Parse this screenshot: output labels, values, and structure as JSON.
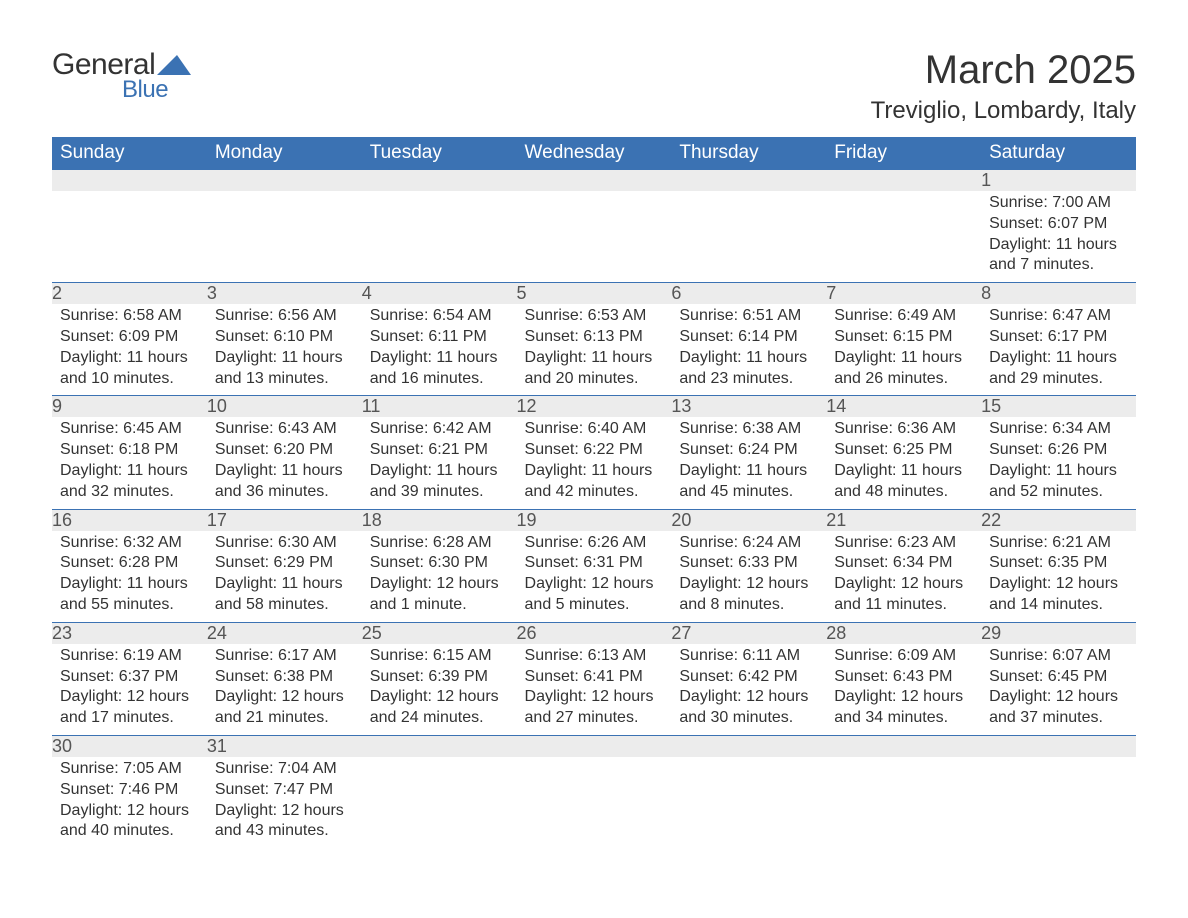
{
  "logo": {
    "text_general": "General",
    "text_blue": "Blue",
    "triangle_color": "#3b72b3"
  },
  "header": {
    "month_title": "March 2025",
    "location": "Treviglio, Lombardy, Italy"
  },
  "colors": {
    "header_bg": "#3b72b3",
    "header_text": "#ffffff",
    "daynum_bg": "#ececec",
    "body_text": "#333333",
    "row_border": "#3b72b3"
  },
  "typography": {
    "month_title_fontsize": 40,
    "location_fontsize": 24,
    "weekday_fontsize": 19,
    "daynum_fontsize": 18,
    "body_fontsize": 16
  },
  "weekdays": [
    "Sunday",
    "Monday",
    "Tuesday",
    "Wednesday",
    "Thursday",
    "Friday",
    "Saturday"
  ],
  "labels": {
    "sunrise": "Sunrise:",
    "sunset": "Sunset:",
    "daylight": "Daylight:"
  },
  "weeks": [
    [
      null,
      null,
      null,
      null,
      null,
      null,
      {
        "n": "1",
        "sunrise": "7:00 AM",
        "sunset": "6:07 PM",
        "daylight": "11 hours and 7 minutes."
      }
    ],
    [
      {
        "n": "2",
        "sunrise": "6:58 AM",
        "sunset": "6:09 PM",
        "daylight": "11 hours and 10 minutes."
      },
      {
        "n": "3",
        "sunrise": "6:56 AM",
        "sunset": "6:10 PM",
        "daylight": "11 hours and 13 minutes."
      },
      {
        "n": "4",
        "sunrise": "6:54 AM",
        "sunset": "6:11 PM",
        "daylight": "11 hours and 16 minutes."
      },
      {
        "n": "5",
        "sunrise": "6:53 AM",
        "sunset": "6:13 PM",
        "daylight": "11 hours and 20 minutes."
      },
      {
        "n": "6",
        "sunrise": "6:51 AM",
        "sunset": "6:14 PM",
        "daylight": "11 hours and 23 minutes."
      },
      {
        "n": "7",
        "sunrise": "6:49 AM",
        "sunset": "6:15 PM",
        "daylight": "11 hours and 26 minutes."
      },
      {
        "n": "8",
        "sunrise": "6:47 AM",
        "sunset": "6:17 PM",
        "daylight": "11 hours and 29 minutes."
      }
    ],
    [
      {
        "n": "9",
        "sunrise": "6:45 AM",
        "sunset": "6:18 PM",
        "daylight": "11 hours and 32 minutes."
      },
      {
        "n": "10",
        "sunrise": "6:43 AM",
        "sunset": "6:20 PM",
        "daylight": "11 hours and 36 minutes."
      },
      {
        "n": "11",
        "sunrise": "6:42 AM",
        "sunset": "6:21 PM",
        "daylight": "11 hours and 39 minutes."
      },
      {
        "n": "12",
        "sunrise": "6:40 AM",
        "sunset": "6:22 PM",
        "daylight": "11 hours and 42 minutes."
      },
      {
        "n": "13",
        "sunrise": "6:38 AM",
        "sunset": "6:24 PM",
        "daylight": "11 hours and 45 minutes."
      },
      {
        "n": "14",
        "sunrise": "6:36 AM",
        "sunset": "6:25 PM",
        "daylight": "11 hours and 48 minutes."
      },
      {
        "n": "15",
        "sunrise": "6:34 AM",
        "sunset": "6:26 PM",
        "daylight": "11 hours and 52 minutes."
      }
    ],
    [
      {
        "n": "16",
        "sunrise": "6:32 AM",
        "sunset": "6:28 PM",
        "daylight": "11 hours and 55 minutes."
      },
      {
        "n": "17",
        "sunrise": "6:30 AM",
        "sunset": "6:29 PM",
        "daylight": "11 hours and 58 minutes."
      },
      {
        "n": "18",
        "sunrise": "6:28 AM",
        "sunset": "6:30 PM",
        "daylight": "12 hours and 1 minute."
      },
      {
        "n": "19",
        "sunrise": "6:26 AM",
        "sunset": "6:31 PM",
        "daylight": "12 hours and 5 minutes."
      },
      {
        "n": "20",
        "sunrise": "6:24 AM",
        "sunset": "6:33 PM",
        "daylight": "12 hours and 8 minutes."
      },
      {
        "n": "21",
        "sunrise": "6:23 AM",
        "sunset": "6:34 PM",
        "daylight": "12 hours and 11 minutes."
      },
      {
        "n": "22",
        "sunrise": "6:21 AM",
        "sunset": "6:35 PM",
        "daylight": "12 hours and 14 minutes."
      }
    ],
    [
      {
        "n": "23",
        "sunrise": "6:19 AM",
        "sunset": "6:37 PM",
        "daylight": "12 hours and 17 minutes."
      },
      {
        "n": "24",
        "sunrise": "6:17 AM",
        "sunset": "6:38 PM",
        "daylight": "12 hours and 21 minutes."
      },
      {
        "n": "25",
        "sunrise": "6:15 AM",
        "sunset": "6:39 PM",
        "daylight": "12 hours and 24 minutes."
      },
      {
        "n": "26",
        "sunrise": "6:13 AM",
        "sunset": "6:41 PM",
        "daylight": "12 hours and 27 minutes."
      },
      {
        "n": "27",
        "sunrise": "6:11 AM",
        "sunset": "6:42 PM",
        "daylight": "12 hours and 30 minutes."
      },
      {
        "n": "28",
        "sunrise": "6:09 AM",
        "sunset": "6:43 PM",
        "daylight": "12 hours and 34 minutes."
      },
      {
        "n": "29",
        "sunrise": "6:07 AM",
        "sunset": "6:45 PM",
        "daylight": "12 hours and 37 minutes."
      }
    ],
    [
      {
        "n": "30",
        "sunrise": "7:05 AM",
        "sunset": "7:46 PM",
        "daylight": "12 hours and 40 minutes."
      },
      {
        "n": "31",
        "sunrise": "7:04 AM",
        "sunset": "7:47 PM",
        "daylight": "12 hours and 43 minutes."
      },
      null,
      null,
      null,
      null,
      null
    ]
  ]
}
